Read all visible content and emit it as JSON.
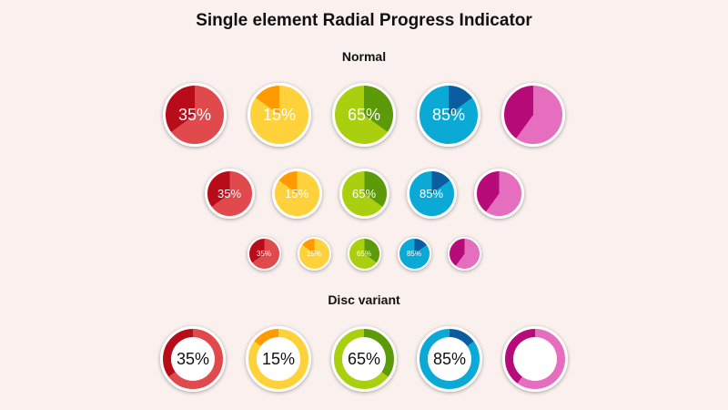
{
  "page": {
    "title": "Single element Radial Progress Indicator"
  },
  "sections": {
    "normal_title": "Normal",
    "disc_title": "Disc variant"
  },
  "palette": [
    {
      "name": "red",
      "track": "#e04a4d",
      "fill": "#b80c1b"
    },
    {
      "name": "orange",
      "track": "#ffd23c",
      "fill": "#ff9a00"
    },
    {
      "name": "green",
      "track": "#5c9a0a",
      "fill": "#a9cf0e"
    },
    {
      "name": "blue",
      "track": "#0c5da0",
      "fill": "#0aa9d6"
    },
    {
      "name": "magenta",
      "track": "#e56fbe",
      "fill": "#b70b7a"
    }
  ],
  "indicators": {
    "large": [
      {
        "label": "35%",
        "progress": 0.35
      },
      {
        "label": "15%",
        "progress": 0.15
      },
      {
        "label": "65%",
        "progress": 0.65
      },
      {
        "label": "85%",
        "progress": 0.85
      },
      {
        "label": "",
        "progress": 0.4
      }
    ],
    "medium": [
      {
        "label": "35%",
        "progress": 0.35
      },
      {
        "label": "15%",
        "progress": 0.15
      },
      {
        "label": "65%",
        "progress": 0.65
      },
      {
        "label": "85%",
        "progress": 0.85
      },
      {
        "label": "",
        "progress": 0.4
      }
    ],
    "small": [
      {
        "label": "35%",
        "progress": 0.35
      },
      {
        "label": "15%",
        "progress": 0.15
      },
      {
        "label": "65%",
        "progress": 0.65
      },
      {
        "label": "85%",
        "progress": 0.85
      },
      {
        "label": "",
        "progress": 0.4
      }
    ],
    "disc": [
      {
        "label": "35%",
        "progress": 0.35
      },
      {
        "label": "15%",
        "progress": 0.15
      },
      {
        "label": "65%",
        "progress": 0.65
      },
      {
        "label": "85%",
        "progress": 0.85
      },
      {
        "label": "",
        "progress": 0.4
      }
    ]
  }
}
